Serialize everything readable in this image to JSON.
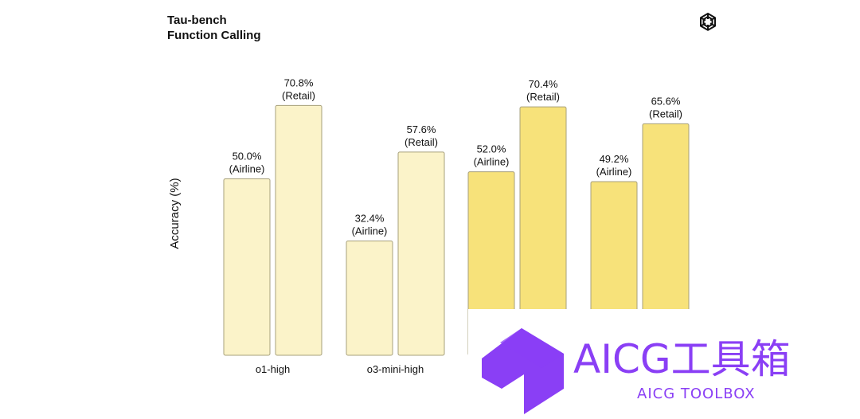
{
  "title": {
    "line1": "Tau-bench",
    "line2": "Function Calling"
  },
  "logo_icon": "openai-logo-icon",
  "chart_data": {
    "type": "bar",
    "ylabel": "Accuracy (%)",
    "xlabel": "",
    "categories": [
      "o1-high",
      "o3-mini-high",
      "",
      ""
    ],
    "series": [
      {
        "name": "Airline",
        "values": [
          50.0,
          32.4,
          52.0,
          49.2
        ]
      },
      {
        "name": "Retail",
        "values": [
          70.8,
          57.6,
          70.4,
          65.6
        ]
      }
    ],
    "data_labels": {
      "Airline": [
        "50.0%",
        "32.4%",
        "52.0%",
        "49.2%"
      ],
      "Retail": [
        "70.8%",
        "57.6%",
        "70.4%",
        "65.6%"
      ]
    },
    "label_suffix": {
      "Airline": "(Airline)",
      "Retail": "(Retail)"
    },
    "group_colors": [
      "#fbf3c9",
      "#fbf3c9",
      "#f7e27a",
      "#f7e27a"
    ],
    "bar_stroke": "#a7a07c",
    "ylim": [
      0,
      100
    ],
    "grid": false,
    "legend": "none"
  },
  "watermark": {
    "brand": "AICG工具箱",
    "sub": "AICG TOOLBOX",
    "color": "#8a3ff5",
    "icon": "aicg-toolbox-logo-icon"
  }
}
